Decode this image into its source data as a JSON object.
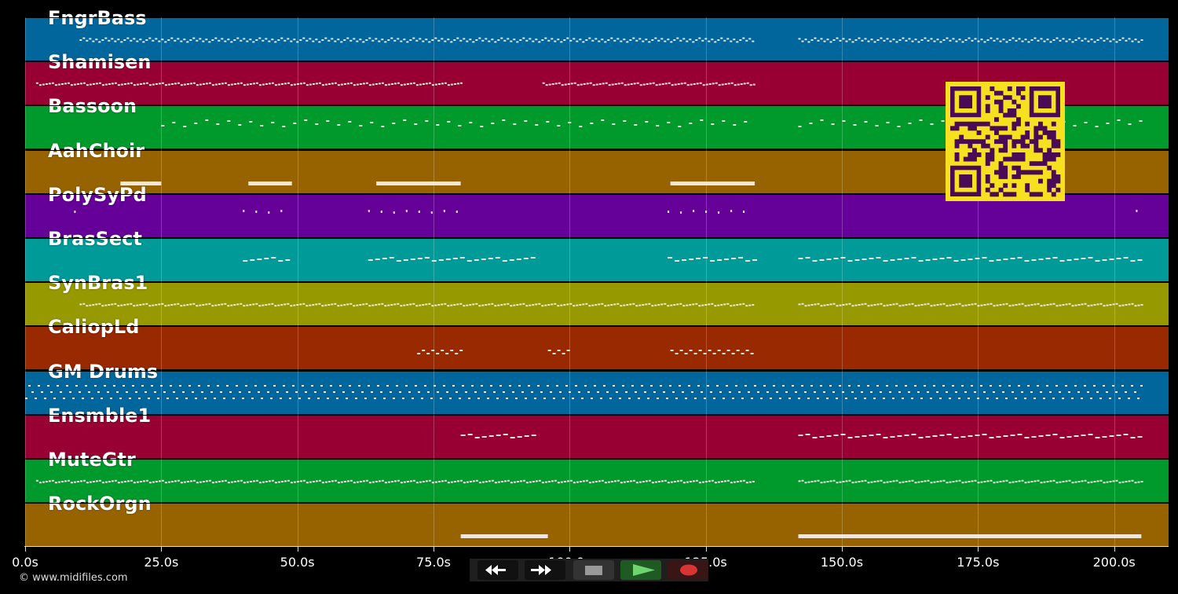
{
  "timeline": {
    "axis_max_seconds": 210,
    "tick_labels": [
      "0.0s",
      "25.0s",
      "50.0s",
      "75.0s",
      "100.0s",
      "125.0s",
      "150.0s",
      "175.0s",
      "200.0s"
    ],
    "tick_values": [
      0,
      25,
      50,
      75,
      100,
      125,
      150,
      175,
      200
    ]
  },
  "tracks": [
    {
      "name": "FngrBass",
      "color": "#00669c",
      "segments": [
        [
          10,
          134
        ],
        [
          142,
          205
        ]
      ],
      "style": "squiggle"
    },
    {
      "name": "Shamisen",
      "color": "#980034",
      "segments": [
        [
          2,
          80
        ],
        [
          95,
          134
        ]
      ],
      "style": "dotted"
    },
    {
      "name": "Bassoon",
      "color": "#00992b",
      "segments": [
        [
          25,
          134
        ],
        [
          142,
          205
        ]
      ],
      "style": "sparse"
    },
    {
      "name": "AahChoir",
      "color": "#966300",
      "segments": [
        [
          17.5,
          25
        ],
        [
          41,
          49
        ],
        [
          64.5,
          80
        ],
        [
          118.5,
          134
        ]
      ],
      "style": "bar"
    },
    {
      "name": "PolySyPd",
      "color": "#650099",
      "segments": [
        [
          9,
          10
        ],
        [
          40,
          49
        ],
        [
          63,
          80
        ],
        [
          118,
          134
        ],
        [
          204,
          205
        ]
      ],
      "style": "dots"
    },
    {
      "name": "BrasSect",
      "color": "#009a99",
      "segments": [
        [
          40,
          49
        ],
        [
          63,
          94
        ],
        [
          118,
          134
        ],
        [
          142,
          205
        ]
      ],
      "style": "dash"
    },
    {
      "name": "SynBras1",
      "color": "#969900",
      "segments": [
        [
          10,
          134
        ],
        [
          142,
          205
        ]
      ],
      "style": "dotted"
    },
    {
      "name": "CaliopLd",
      "color": "#982900",
      "segments": [
        [
          72,
          80
        ],
        [
          96,
          100
        ],
        [
          118.5,
          134
        ]
      ],
      "style": "cluster"
    },
    {
      "name": "GM Drums",
      "color": "#00669c",
      "segments": [
        [
          0,
          205
        ]
      ],
      "style": "drums"
    },
    {
      "name": "Ensmble1",
      "color": "#980034",
      "segments": [
        [
          80,
          94
        ],
        [
          142,
          205
        ]
      ],
      "style": "dash"
    },
    {
      "name": "MuteGtr",
      "color": "#00992b",
      "segments": [
        [
          2,
          134
        ],
        [
          142,
          205
        ]
      ],
      "style": "dotted"
    },
    {
      "name": "RockOrgn",
      "color": "#966300",
      "segments": [
        [
          80,
          96
        ],
        [
          142,
          205
        ]
      ],
      "style": "bar"
    }
  ],
  "transport": {
    "buttons": [
      {
        "name": "rewind",
        "icon": "rewind-icon"
      },
      {
        "name": "fast-forward",
        "icon": "fast-forward-icon"
      },
      {
        "name": "stop",
        "icon": "stop-icon"
      },
      {
        "name": "play",
        "icon": "play-icon"
      },
      {
        "name": "record",
        "icon": "record-icon"
      }
    ]
  },
  "copyright": "© www.midifiles.com",
  "colors": {
    "background": "#000000",
    "qr_dark": "#4a0a55",
    "qr_light": "#f7e01f"
  }
}
